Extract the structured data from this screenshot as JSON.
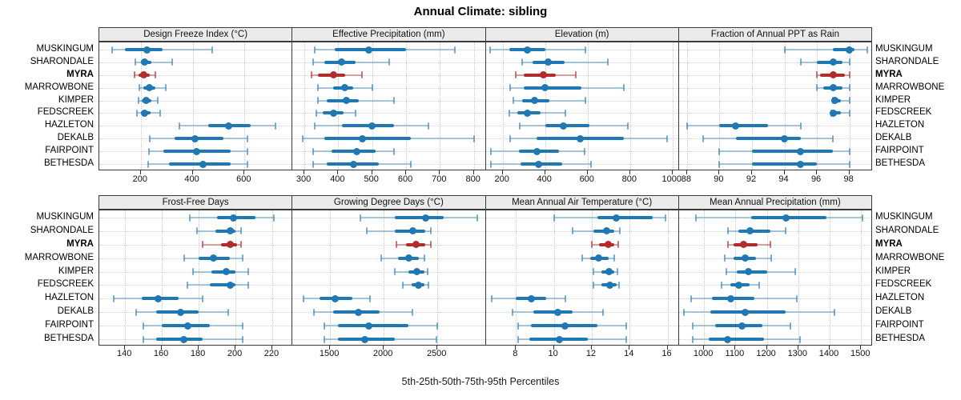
{
  "title": "Annual Climate: sibling",
  "xlabel": "5th-25th-50th-75th-95th Percentiles",
  "sites": [
    "MUSKINGUM",
    "SHARONDALE",
    "MYRA",
    "MARROWBONE",
    "KIMPER",
    "FEDSCREEK",
    "HAZLETON",
    "DEKALB",
    "FAIRPOINT",
    "BETHESDA"
  ],
  "highlight_site": "MYRA",
  "colors": {
    "series_blue": "#1f77b4",
    "series_blue_light": "rgba(31,119,180,0.38)",
    "series_blue_cap": "rgba(31,119,180,0.6)",
    "highlight_red": "#b32b2b",
    "highlight_red_light": "rgba(179,43,43,0.42)",
    "highlight_red_cap": "rgba(179,43,43,0.65)",
    "strip_bg": "#ebebeb",
    "panel_border": "#3a3a3a",
    "grid": "#cccccc"
  },
  "chart_data": {
    "type": "dotplot-intervals",
    "title": "Annual Climate: sibling",
    "xlabel": "5th-25th-50th-75th-95th Percentiles",
    "percentiles": [
      5,
      25,
      50,
      75,
      95
    ],
    "legend_position": "none",
    "grid": "dotted",
    "panels": [
      {
        "title": "Design Freeze Index (°C)",
        "row": 0,
        "xlim": [
          40,
          785
        ],
        "ticks": [
          200,
          400,
          600
        ],
        "values": [
          [
            90,
            140,
            225,
            285,
            475
          ],
          [
            180,
            200,
            215,
            240,
            320
          ],
          [
            175,
            190,
            212,
            235,
            255
          ],
          [
            195,
            210,
            232,
            255,
            295
          ],
          [
            190,
            205,
            222,
            242,
            265
          ],
          [
            185,
            200,
            215,
            237,
            275
          ],
          [
            348,
            460,
            540,
            625,
            720
          ],
          [
            235,
            330,
            410,
            520,
            612
          ],
          [
            230,
            288,
            415,
            545,
            610
          ],
          [
            228,
            310,
            440,
            548,
            612
          ]
        ]
      },
      {
        "title": "Effective Precipitation (mm)",
        "row": 0,
        "xlim": [
          265,
          835
        ],
        "ticks": [
          300,
          400,
          500,
          600,
          700,
          800
        ],
        "values": [
          [
            330,
            390,
            490,
            600,
            745
          ],
          [
            325,
            360,
            410,
            450,
            550
          ],
          [
            322,
            340,
            385,
            420,
            470
          ],
          [
            340,
            385,
            420,
            445,
            500
          ],
          [
            340,
            365,
            425,
            460,
            565
          ],
          [
            335,
            355,
            385,
            415,
            450
          ],
          [
            330,
            410,
            500,
            565,
            665
          ],
          [
            295,
            360,
            470,
            615,
            800
          ],
          [
            325,
            380,
            455,
            510,
            565
          ],
          [
            325,
            365,
            445,
            520,
            615
          ]
        ]
      },
      {
        "title": "Elevation (m)",
        "row": 0,
        "xlim": [
          120,
          1030
        ],
        "ticks": [
          200,
          400,
          600,
          800,
          1000
        ],
        "values": [
          [
            140,
            230,
            315,
            400,
            590
          ],
          [
            290,
            340,
            415,
            490,
            695
          ],
          [
            260,
            300,
            390,
            450,
            545
          ],
          [
            235,
            300,
            400,
            570,
            770
          ],
          [
            250,
            290,
            350,
            420,
            590
          ],
          [
            230,
            270,
            315,
            380,
            495
          ],
          [
            280,
            400,
            485,
            610,
            790
          ],
          [
            235,
            360,
            565,
            770,
            975
          ],
          [
            145,
            275,
            360,
            465,
            585
          ],
          [
            145,
            285,
            370,
            480,
            615
          ]
        ]
      },
      {
        "title": "Fraction of Annual PPT as Rain",
        "row": 0,
        "xlim": [
          87.5,
          99.4
        ],
        "ticks": [
          88,
          90,
          92,
          94,
          96,
          98
        ],
        "values": [
          [
            94,
            97,
            98,
            98.3,
            99.1
          ],
          [
            95,
            96,
            97,
            97.6,
            98
          ],
          [
            96,
            96.2,
            97,
            97.7,
            98
          ],
          [
            96,
            96.4,
            97,
            97.6,
            98
          ],
          [
            97,
            97,
            97.1,
            97.5,
            98
          ],
          [
            96.9,
            96.9,
            97,
            97.5,
            98
          ],
          [
            88,
            90,
            91,
            93,
            95
          ],
          [
            89,
            91,
            94,
            95,
            97
          ],
          [
            90,
            92,
            95,
            97,
            98
          ],
          [
            90,
            92,
            95,
            96,
            98
          ]
        ]
      },
      {
        "title": "Frost-Free Days",
        "row": 1,
        "xlim": [
          126,
          231
        ],
        "ticks": [
          140,
          160,
          180,
          200,
          220
        ],
        "values": [
          [
            175,
            190,
            199,
            211,
            221
          ],
          [
            179,
            189,
            197,
            200,
            203
          ],
          [
            182,
            192,
            197,
            201,
            203
          ],
          [
            172,
            180,
            188,
            197,
            204
          ],
          [
            177,
            187,
            195,
            200,
            207
          ],
          [
            174,
            186,
            197,
            200,
            207
          ],
          [
            134,
            149,
            158,
            169,
            182
          ],
          [
            146,
            157,
            170,
            180,
            196
          ],
          [
            150,
            160,
            174,
            186,
            204
          ],
          [
            150,
            157,
            172,
            182,
            204
          ]
        ]
      },
      {
        "title": "Growing Degree Days (°C)",
        "row": 1,
        "xlim": [
          1150,
          2950
        ],
        "ticks": [
          1500,
          2000,
          2500
        ],
        "values": [
          [
            1780,
            2100,
            2390,
            2560,
            2870
          ],
          [
            1840,
            2100,
            2270,
            2390,
            2440
          ],
          [
            2120,
            2210,
            2300,
            2390,
            2440
          ],
          [
            1980,
            2130,
            2230,
            2330,
            2380
          ],
          [
            2100,
            2230,
            2310,
            2380,
            2410
          ],
          [
            2180,
            2260,
            2320,
            2380,
            2420
          ],
          [
            1250,
            1400,
            1550,
            1710,
            1870
          ],
          [
            1350,
            1530,
            1760,
            1960,
            2270
          ],
          [
            1450,
            1570,
            1860,
            2230,
            2500
          ],
          [
            1450,
            1570,
            1820,
            2100,
            2490
          ]
        ]
      },
      {
        "title": "Mean Annual Air Temperature (°C)",
        "row": 1,
        "xlim": [
          6.4,
          16.6
        ],
        "ticks": [
          8,
          10,
          12,
          14,
          16
        ],
        "values": [
          [
            10.0,
            12.3,
            13.3,
            15.2,
            15.9
          ],
          [
            11.0,
            12.1,
            12.8,
            13.2,
            13.5
          ],
          [
            12.0,
            12.4,
            12.85,
            13.2,
            13.4
          ],
          [
            11.5,
            11.9,
            12.35,
            12.9,
            13.2
          ],
          [
            12.1,
            12.5,
            12.9,
            13.2,
            13.35
          ],
          [
            12.1,
            12.5,
            12.95,
            13.3,
            13.45
          ],
          [
            6.7,
            8.0,
            8.8,
            9.6,
            10.6
          ],
          [
            7.8,
            8.9,
            10.2,
            11.0,
            12.6
          ],
          [
            8.1,
            8.8,
            10.6,
            12.3,
            13.8
          ],
          [
            8.1,
            8.7,
            10.3,
            11.8,
            13.8
          ]
        ]
      },
      {
        "title": "Mean Annual Precipitation (mm)",
        "row": 1,
        "xlim": [
          920,
          1535
        ],
        "ticks": [
          1000,
          1100,
          1200,
          1300,
          1400,
          1500
        ],
        "values": [
          [
            975,
            1150,
            1260,
            1390,
            1505
          ],
          [
            1075,
            1110,
            1145,
            1210,
            1260
          ],
          [
            1075,
            1095,
            1125,
            1170,
            1210
          ],
          [
            1065,
            1095,
            1130,
            1165,
            1215
          ],
          [
            1070,
            1105,
            1140,
            1200,
            1290
          ],
          [
            1055,
            1085,
            1110,
            1145,
            1175
          ],
          [
            960,
            1025,
            1085,
            1160,
            1295
          ],
          [
            935,
            1020,
            1130,
            1260,
            1415
          ],
          [
            965,
            1035,
            1120,
            1185,
            1275
          ],
          [
            965,
            1015,
            1075,
            1190,
            1305
          ]
        ]
      }
    ]
  }
}
